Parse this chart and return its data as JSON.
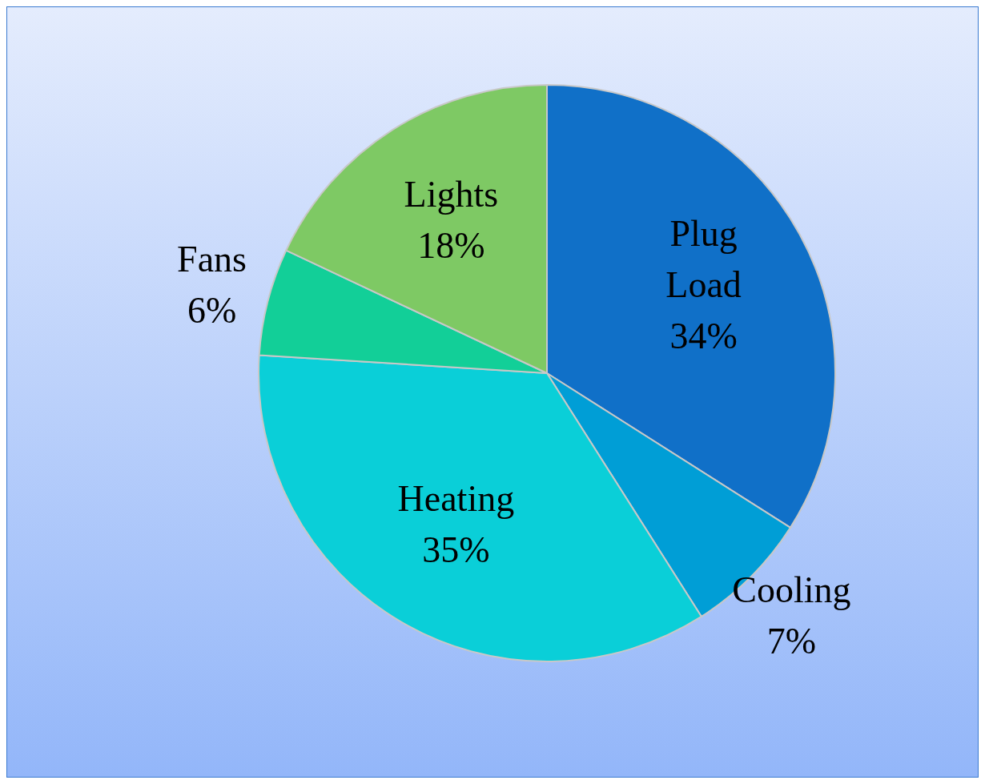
{
  "chart_data": {
    "type": "pie",
    "categories": [
      "Plug Load",
      "Cooling",
      "Heating",
      "Fans",
      "Lights"
    ],
    "values": [
      34,
      7,
      35,
      6,
      18
    ],
    "colors": [
      "#1070c8",
      "#009ed6",
      "#0acfd8",
      "#12cf98",
      "#7ec964"
    ],
    "value_labels": [
      "34%",
      "7%",
      "35%",
      "6%",
      "18%"
    ],
    "legend": false
  }
}
